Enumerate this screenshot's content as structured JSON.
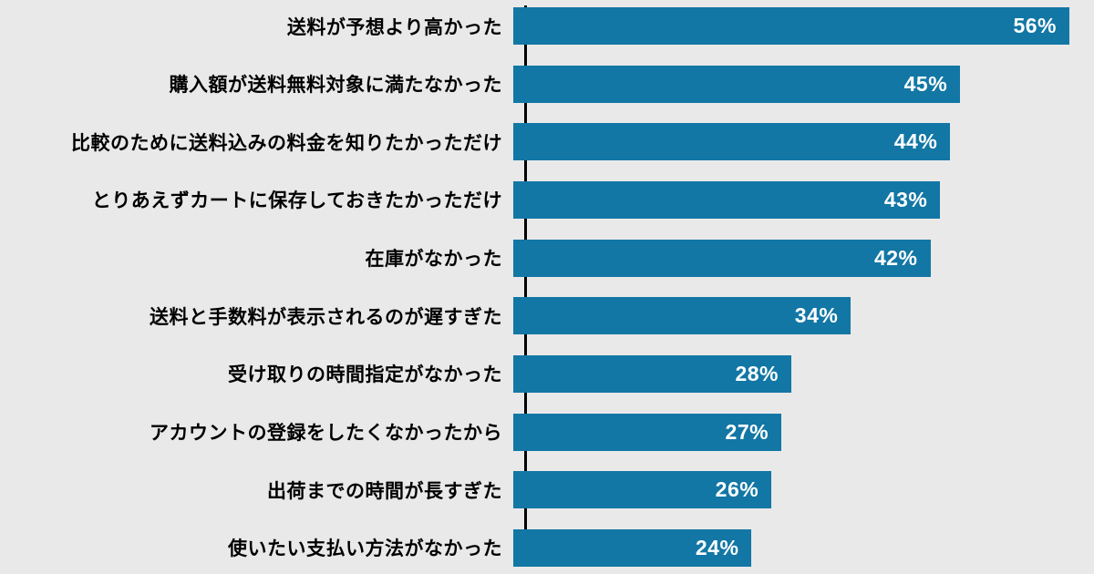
{
  "chart_data": {
    "type": "bar",
    "orientation": "horizontal",
    "title": "",
    "xlabel": "",
    "ylabel": "",
    "xlim": [
      0,
      56
    ],
    "grid": false,
    "legend": "none",
    "value_suffix": "%",
    "categories": [
      "送料が予想より高かった",
      "購入額が送料無料対象に満たなかった",
      "比較のために送料込みの料金を知りたかっただけ",
      "とりあえずカートに保存しておきたかっただけ",
      "在庫がなかった",
      "送料と手数料が表示されるのが遅すぎた",
      "受け取りの時間指定がなかった",
      "アカウントの登録をしたくなかったから",
      "出荷までの時間が長すぎた",
      "使いたい支払い方法がなかった"
    ],
    "values": [
      56,
      45,
      44,
      43,
      42,
      34,
      28,
      27,
      26,
      24
    ],
    "value_labels": [
      "56%",
      "45%",
      "44%",
      "43%",
      "42%",
      "34%",
      "28%",
      "27%",
      "26%",
      "24%"
    ],
    "colors": {
      "bar": "#1277a5",
      "background": "#e9e9e9",
      "axis": "#000000",
      "label_text": "#000000",
      "value_text": "#ffffff"
    }
  }
}
